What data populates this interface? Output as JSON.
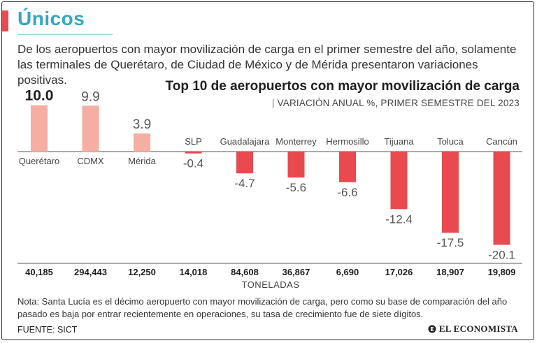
{
  "header": {
    "title": "Únicos",
    "subtitle": "De los aeropuertos con mayor movilización de carga en el primer semestre del año, solamente las terminales de Querétaro, de Ciudad de México y de Mérida presentaron variaciones positivas."
  },
  "chart_data": {
    "type": "bar",
    "title": "Top 10 de aeropuertos con mayor movilización de carga",
    "subtitle": "VARIACIÓN ANUAL %, PRIMER SEMESTRE DEL 2023",
    "categories": [
      "Querétaro",
      "CDMX",
      "Mérida",
      "SLP",
      "Guadalajara",
      "Monterrey",
      "Hermosillo",
      "Tijuana",
      "Toluca",
      "Cancún"
    ],
    "values": [
      10.0,
      9.9,
      3.9,
      -0.4,
      -4.7,
      -5.6,
      -6.6,
      -12.4,
      -17.5,
      -20.1
    ],
    "value_labels": [
      "10.0",
      "9.9",
      "3.9",
      "-0.4",
      "-4.7",
      "-5.6",
      "-6.6",
      "-12.4",
      "-17.5",
      "-20.1"
    ],
    "tonnes": [
      "40,185",
      "294,443",
      "12,250",
      "14,018",
      "84,608",
      "36,867",
      "6,690",
      "17,026",
      "18,907",
      "19,809"
    ],
    "tonnes_label": "TONELADAS",
    "ylim": [
      -20.1,
      10.0
    ],
    "colors": {
      "positive": "#f6aea2",
      "negative": "#e84a4f"
    }
  },
  "footer": {
    "note": "Nota: Santa Lucía es el décimo aeropuerto con mayor movilización de carga, pero como su base de comparación del año pasado es baja por entrar recientemente en operaciones, su tasa de crecimiento fue de siete dígitos.",
    "source": "FUENTE: SICT",
    "brand": "EL ECONOMISTA"
  },
  "colors": {
    "accent": "#e84a4f",
    "title": "#35a7c2"
  }
}
